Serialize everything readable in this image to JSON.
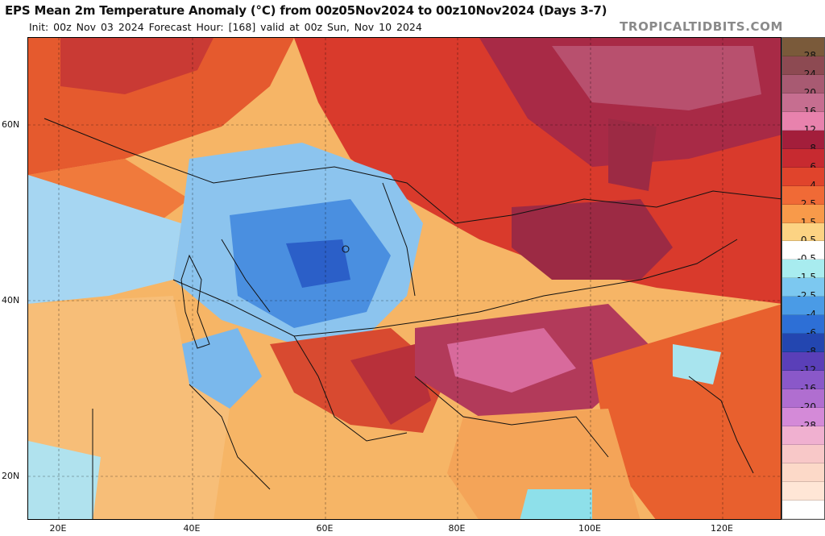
{
  "header": {
    "title": "EPS Mean 2m Temperature Anomaly (°C) from 00z05Nov2024 to 00z10Nov2024 (Days 3-7)",
    "subtitle": "Init: 00z Nov 03 2024   Forecast Hour: [168]   valid at 00z Sun, Nov 10 2024",
    "brand": "TROPICALTIDBITS.COM"
  },
  "map": {
    "lat_labels": [
      "60N",
      "40N",
      "20N"
    ],
    "lon_labels": [
      "20E",
      "40E",
      "60E",
      "80E",
      "100E",
      "120E"
    ]
  },
  "colorbar": {
    "cells": [
      {
        "label": "28",
        "color": "#7a5a3a"
      },
      {
        "label": "24",
        "color": "#8d4a52"
      },
      {
        "label": "20",
        "color": "#a85a72"
      },
      {
        "label": "16",
        "color": "#c66e90"
      },
      {
        "label": "12",
        "color": "#e882ad"
      },
      {
        "label": "8",
        "color": "#a31e3b"
      },
      {
        "label": "6",
        "color": "#c72a30"
      },
      {
        "label": "4",
        "color": "#e0442c"
      },
      {
        "label": "2.5",
        "color": "#f06a36"
      },
      {
        "label": "1.5",
        "color": "#f89a4a"
      },
      {
        "label": "0.5",
        "color": "#fcd383"
      },
      {
        "label": "-0.5",
        "color": "#ffffff"
      },
      {
        "label": "-1.5",
        "color": "#a8ecef"
      },
      {
        "label": "-2.5",
        "color": "#7cc8f0"
      },
      {
        "label": "-4",
        "color": "#4a9be6"
      },
      {
        "label": "-6",
        "color": "#2d6fd6"
      },
      {
        "label": "-8",
        "color": "#2346b0"
      },
      {
        "label": "-12",
        "color": "#5a3fb8"
      },
      {
        "label": "-16",
        "color": "#8a58c9"
      },
      {
        "label": "-20",
        "color": "#b06ed0"
      },
      {
        "label": "-28",
        "color": "#d48ad8"
      },
      {
        "label": "",
        "color": "#f0b0d0"
      },
      {
        "label": "",
        "color": "#f8c8c8"
      },
      {
        "label": "",
        "color": "#fcd9c8"
      },
      {
        "label": "",
        "color": "#ffe6d6"
      },
      {
        "label": "",
        "color": "#ffffff"
      }
    ]
  }
}
